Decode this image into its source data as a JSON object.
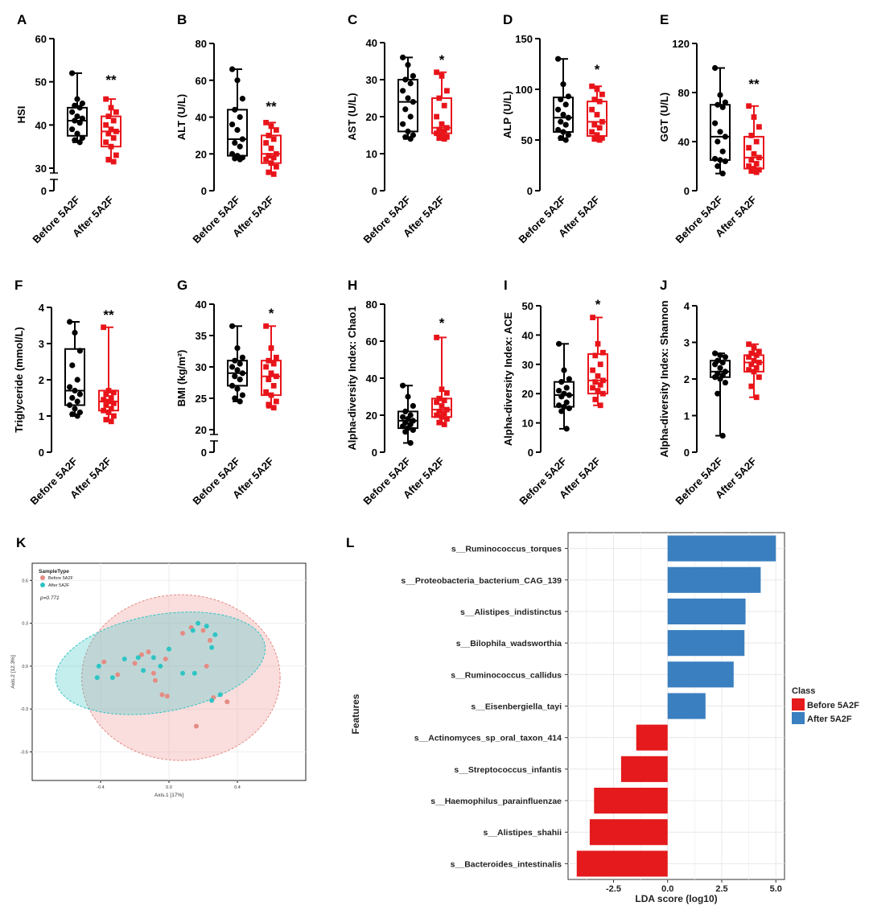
{
  "colors": {
    "before": "#000000",
    "after": "#e8141a",
    "pcoa_before": "#e48c84",
    "pcoa_after": "#2ec4c4",
    "lda_before": "#e41a1c",
    "lda_after": "#3a7fc0"
  },
  "chart_data": [
    {
      "panel": "A",
      "type": "box",
      "ylabel": "HSI",
      "categories": [
        "Before 5A2F",
        "After 5A2F"
      ],
      "yticks": [
        "0",
        "30",
        "40",
        "50",
        "60"
      ],
      "ylim": [
        30,
        60
      ],
      "axis_break": true,
      "significance": "**",
      "series": [
        {
          "name": "Before 5A2F",
          "min": 36,
          "q1": 37.5,
          "median": 41,
          "q3": 44,
          "max": 52,
          "points": [
            52,
            46,
            45,
            44.5,
            44,
            43,
            42,
            41.5,
            41,
            40.5,
            39,
            38,
            37,
            36.5,
            36
          ]
        },
        {
          "name": "After 5A2F",
          "min": 31.5,
          "q1": 35,
          "median": 38.5,
          "q3": 42,
          "max": 46,
          "points": [
            46,
            44,
            43,
            42,
            41,
            40,
            39,
            38.5,
            38,
            37,
            36,
            35,
            33,
            32,
            31.5
          ]
        }
      ]
    },
    {
      "panel": "B",
      "type": "box",
      "ylabel": "ALT (U/L)",
      "categories": [
        "Before 5A2F",
        "After 5A2F"
      ],
      "yticks": [
        "0",
        "20",
        "40",
        "60",
        "80"
      ],
      "ylim": [
        0,
        80
      ],
      "significance": "**",
      "series": [
        {
          "name": "Before 5A2F",
          "min": 17,
          "q1": 19,
          "median": 28,
          "q3": 44,
          "max": 66,
          "points": [
            66,
            60,
            50,
            44,
            40,
            36,
            33,
            28,
            26,
            24,
            20,
            19,
            18,
            17.5,
            17
          ]
        },
        {
          "name": "After 5A2F",
          "min": 9,
          "q1": 15,
          "median": 20,
          "q3": 30,
          "max": 37,
          "points": [
            37,
            35,
            33,
            30,
            28,
            26,
            23,
            20,
            19,
            18,
            17,
            15,
            13,
            10,
            9
          ]
        }
      ]
    },
    {
      "panel": "C",
      "type": "box",
      "ylabel": "AST (U/L)",
      "categories": [
        "Before 5A2F",
        "After 5A2F"
      ],
      "yticks": [
        "0",
        "10",
        "20",
        "30",
        "40"
      ],
      "ylim": [
        0,
        40
      ],
      "significance": "*",
      "series": [
        {
          "name": "Before 5A2F",
          "min": 14,
          "q1": 16,
          "median": 24,
          "q3": 30,
          "max": 36,
          "points": [
            36,
            34,
            31,
            30,
            29,
            27,
            25,
            24,
            22,
            20,
            18,
            16,
            15,
            14.5,
            14
          ]
        },
        {
          "name": "After 5A2F",
          "min": 14,
          "q1": 15.5,
          "median": 17,
          "q3": 25,
          "max": 32,
          "points": [
            32,
            31,
            27,
            25,
            23,
            20,
            18,
            17,
            16.5,
            16,
            15.5,
            15,
            14.5,
            14.2,
            14
          ]
        }
      ]
    },
    {
      "panel": "D",
      "type": "box",
      "ylabel": "ALP (U/L)",
      "categories": [
        "Before 5A2F",
        "After 5A2F"
      ],
      "yticks": [
        "0",
        "50",
        "100",
        "150"
      ],
      "ylim": [
        0,
        150
      ],
      "significance": "*",
      "series": [
        {
          "name": "Before 5A2F",
          "min": 50,
          "q1": 58,
          "median": 72,
          "q3": 92,
          "max": 130,
          "points": [
            130,
            105,
            93,
            90,
            85,
            80,
            75,
            72,
            68,
            65,
            60,
            58,
            55,
            52,
            50
          ]
        },
        {
          "name": "After 5A2F",
          "min": 50,
          "q1": 54,
          "median": 68,
          "q3": 88,
          "max": 103,
          "points": [
            103,
            100,
            95,
            90,
            88,
            80,
            75,
            68,
            65,
            62,
            58,
            55,
            52,
            51,
            50
          ]
        }
      ]
    },
    {
      "panel": "E",
      "type": "box",
      "ylabel": "GGT (U/L)",
      "categories": [
        "Before 5A2F",
        "After 5A2F"
      ],
      "yticks": [
        "0",
        "40",
        "80",
        "120"
      ],
      "ylim": [
        0,
        120
      ],
      "significance": "**",
      "series": [
        {
          "name": "Before 5A2F",
          "min": 14,
          "q1": 25,
          "median": 44,
          "q3": 70,
          "max": 100,
          "points": [
            100,
            78,
            72,
            70,
            68,
            55,
            48,
            44,
            40,
            32,
            26,
            25,
            24,
            20,
            14
          ]
        },
        {
          "name": "After 5A2F",
          "min": 15,
          "q1": 18,
          "median": 27,
          "q3": 44,
          "max": 69,
          "points": [
            69,
            60,
            52,
            45,
            40,
            35,
            30,
            27,
            25,
            22,
            20,
            18,
            17,
            16,
            15
          ]
        }
      ]
    },
    {
      "panel": "F",
      "type": "box",
      "ylabel": "Triglyceride (mmol/L)",
      "categories": [
        "Before 5A2F",
        "After 5A2F"
      ],
      "yticks": [
        "0",
        "1",
        "2",
        "3",
        "4"
      ],
      "ylim": [
        0,
        4
      ],
      "significance": "**",
      "series": [
        {
          "name": "Before 5A2F",
          "min": 1.0,
          "q1": 1.3,
          "median": 1.7,
          "q3": 2.85,
          "max": 3.6,
          "points": [
            3.6,
            3.3,
            2.8,
            2.4,
            2.0,
            1.8,
            1.7,
            1.6,
            1.5,
            1.4,
            1.3,
            1.2,
            1.1,
            1.05,
            1.0
          ]
        },
        {
          "name": "After 5A2F",
          "min": 0.85,
          "q1": 1.15,
          "median": 1.4,
          "q3": 1.7,
          "max": 3.45,
          "points": [
            3.45,
            1.7,
            1.65,
            1.6,
            1.5,
            1.45,
            1.4,
            1.35,
            1.3,
            1.2,
            1.15,
            1.1,
            1.0,
            0.9,
            0.85
          ]
        }
      ]
    },
    {
      "panel": "G",
      "type": "box",
      "ylabel": "BMI (kg/m²)",
      "categories": [
        "Before 5A2F",
        "After 5A2F"
      ],
      "yticks": [
        "0",
        "20",
        "25",
        "30",
        "35",
        "40"
      ],
      "ylim": [
        20,
        40
      ],
      "axis_break": true,
      "significance": "*",
      "series": [
        {
          "name": "Before 5A2F",
          "min": 24.5,
          "q1": 27,
          "median": 29,
          "q3": 31,
          "max": 36.5,
          "points": [
            36.5,
            33,
            31.5,
            31,
            30.5,
            30,
            29.5,
            29,
            28.5,
            28,
            27,
            26.5,
            25.5,
            25,
            24.5
          ]
        },
        {
          "name": "After 5A2F",
          "min": 23.5,
          "q1": 25.5,
          "median": 28.5,
          "q3": 31,
          "max": 36.5,
          "points": [
            36.5,
            33,
            31.5,
            31,
            30.5,
            30,
            29,
            28.5,
            28,
            27,
            26,
            25.5,
            24.5,
            24,
            23.5
          ]
        }
      ]
    },
    {
      "panel": "H",
      "type": "box",
      "ylabel": "Alpha-diversity Index: Chao1",
      "categories": [
        "Before 5A2F",
        "After 5A2F"
      ],
      "yticks": [
        "0",
        "20",
        "40",
        "60",
        "80"
      ],
      "ylim": [
        0,
        80
      ],
      "significance": "*",
      "series": [
        {
          "name": "Before 5A2F",
          "min": 5,
          "q1": 13,
          "median": 17,
          "q3": 22,
          "max": 36,
          "points": [
            36,
            30,
            25,
            22,
            20,
            19,
            18,
            17,
            16,
            15,
            14,
            13,
            12,
            11,
            5
          ]
        },
        {
          "name": "After 5A2F",
          "min": 15,
          "q1": 19,
          "median": 23,
          "q3": 29,
          "max": 62,
          "points": [
            62,
            34,
            32,
            29,
            28,
            27,
            25,
            23,
            22,
            21,
            20,
            19,
            18,
            16,
            15
          ]
        }
      ]
    },
    {
      "panel": "I",
      "type": "box",
      "ylabel": "Alpha-diversity Index: ACE",
      "categories": [
        "Before 5A2F",
        "After 5A2F"
      ],
      "yticks": [
        "0",
        "10",
        "20",
        "30",
        "40",
        "50"
      ],
      "ylim": [
        0,
        50
      ],
      "significance": "*",
      "series": [
        {
          "name": "Before 5A2F",
          "min": 8,
          "q1": 15.5,
          "median": 19.5,
          "q3": 24,
          "max": 37,
          "points": [
            37,
            28,
            25,
            24,
            22,
            21,
            20,
            19.5,
            19,
            17,
            16,
            15.5,
            15,
            14,
            8
          ]
        },
        {
          "name": "After 5A2F",
          "min": 16,
          "q1": 20,
          "median": 24.5,
          "q3": 33.5,
          "max": 46,
          "points": [
            46,
            37,
            34,
            33,
            30,
            28,
            26,
            24.5,
            24,
            23,
            22,
            21,
            20,
            18,
            16
          ]
        }
      ]
    },
    {
      "panel": "J",
      "type": "box",
      "ylabel": "Alpha-diversity Index: Shannon",
      "categories": [
        "Before 5A2F",
        "After 5A2F"
      ],
      "yticks": [
        "0",
        "1",
        "2",
        "3",
        "4"
      ],
      "ylim": [
        0,
        4
      ],
      "significance": "",
      "series": [
        {
          "name": "Before 5A2F",
          "min": 0.45,
          "q1": 2.05,
          "median": 2.2,
          "q3": 2.5,
          "max": 2.7,
          "points": [
            2.7,
            2.65,
            2.6,
            2.5,
            2.45,
            2.4,
            2.3,
            2.2,
            2.15,
            2.1,
            2.05,
            2.0,
            1.9,
            1.6,
            0.45
          ]
        },
        {
          "name": "After 5A2F",
          "min": 1.5,
          "q1": 2.2,
          "median": 2.45,
          "q3": 2.65,
          "max": 2.95,
          "points": [
            2.95,
            2.85,
            2.75,
            2.7,
            2.65,
            2.6,
            2.5,
            2.45,
            2.4,
            2.3,
            2.25,
            2.2,
            2.05,
            1.8,
            1.5
          ]
        }
      ]
    },
    {
      "panel": "K",
      "type": "scatter",
      "legend_title": "SampleType",
      "pvalue_text": "p=0.771",
      "xlabel": "Axis.1   [17%]",
      "ylabel": "Axis.2   [12.3%]",
      "xticks": [
        -0.4,
        0.0,
        0.4
      ],
      "yticks": [
        -0.6,
        -0.3,
        0.0,
        0.3,
        0.6
      ],
      "xlim": [
        -0.8,
        0.8
      ],
      "ylim": [
        -0.8,
        0.72
      ],
      "series": [
        {
          "name": "Before 5A2F",
          "points": [
            [
              -0.38,
              0.03
            ],
            [
              -0.3,
              -0.06
            ],
            [
              -0.2,
              0.02
            ],
            [
              -0.16,
              0.08
            ],
            [
              -0.12,
              0.1
            ],
            [
              -0.09,
              -0.05
            ],
            [
              -0.08,
              -0.1
            ],
            [
              -0.04,
              -0.2
            ],
            [
              -0.01,
              -0.21
            ],
            [
              -0.02,
              0.05
            ],
            [
              0.08,
              0.23
            ],
            [
              0.13,
              0.27
            ],
            [
              0.2,
              0.25
            ],
            [
              0.22,
              0.0
            ],
            [
              0.24,
              0.18
            ],
            [
              0.26,
              -0.22
            ],
            [
              0.34,
              -0.25
            ],
            [
              0.16,
              -0.42
            ]
          ]
        },
        {
          "name": "After 5A2F",
          "points": [
            [
              -0.42,
              -0.08
            ],
            [
              -0.41,
              0.0
            ],
            [
              -0.33,
              -0.08
            ],
            [
              -0.26,
              0.05
            ],
            [
              -0.18,
              0.06
            ],
            [
              -0.15,
              -0.03
            ],
            [
              -0.09,
              0.06
            ],
            [
              -0.05,
              0.0
            ],
            [
              0.0,
              0.12
            ],
            [
              0.08,
              -0.05
            ],
            [
              0.15,
              -0.05
            ],
            [
              0.14,
              0.25
            ],
            [
              0.17,
              0.3
            ],
            [
              0.22,
              0.28
            ],
            [
              0.25,
              0.13
            ],
            [
              0.27,
              0.22
            ],
            [
              0.3,
              -0.2
            ],
            [
              0.25,
              -0.24
            ]
          ]
        }
      ],
      "ellipses": [
        {
          "series": "Before 5A2F",
          "cx": 0.07,
          "cy": -0.08,
          "rx": 0.58,
          "ry": 0.58,
          "angle": 0
        },
        {
          "series": "After 5A2F",
          "cx": -0.05,
          "cy": 0.02,
          "rx": 0.62,
          "ry": 0.34,
          "angle": 10
        }
      ]
    },
    {
      "panel": "L",
      "type": "bar",
      "orientation": "horizontal",
      "xlabel": "LDA score (log10)",
      "ylabel": "Features",
      "xticks": [
        "-2.5",
        "0.0",
        "2.5",
        "5.0"
      ],
      "xlim": [
        -4.6,
        5.4
      ],
      "legend_title": "Class",
      "legend_position": "right",
      "categories": [
        "s__Ruminococcus_torques",
        "s__Proteobacteria_bacterium_CAG_139",
        "s__Alistipes_indistinctus",
        "s__Bilophila_wadsworthia",
        "s__Ruminococcus_callidus",
        "s__Eisenbergiella_tayi",
        "s__Actinomyces_sp_oral_taxon_414",
        "s__Streptococcus_infantis",
        "s__Haemophilus_parainfluenzae",
        "s__Alistipes_shahii",
        "s__Bacteroides_intestinalis"
      ],
      "values": [
        5.0,
        4.3,
        3.6,
        3.55,
        3.05,
        1.75,
        -1.45,
        -2.15,
        -3.4,
        -3.6,
        -4.2
      ],
      "classes": [
        "After 5A2F",
        "After 5A2F",
        "After 5A2F",
        "After 5A2F",
        "After 5A2F",
        "After 5A2F",
        "Before 5A2F",
        "Before 5A2F",
        "Before 5A2F",
        "Before 5A2F",
        "Before 5A2F"
      ],
      "legend": [
        "Before 5A2F",
        "After 5A2F"
      ]
    }
  ]
}
